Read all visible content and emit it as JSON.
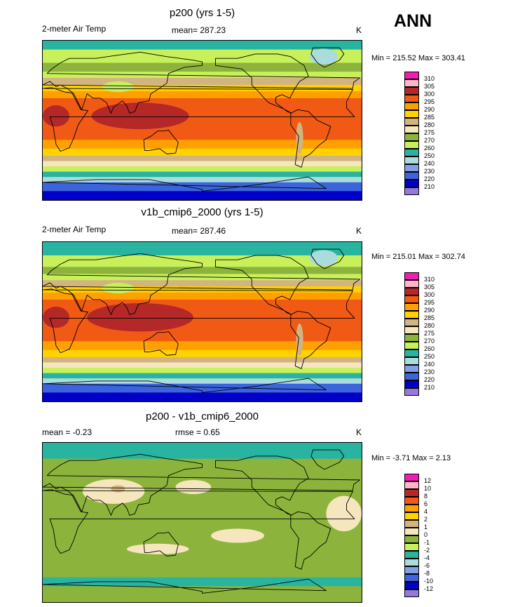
{
  "season": "ANN",
  "panels": [
    {
      "title": "p200 (yrs 1-5)",
      "left": "2-meter Air Temp",
      "center": "mean= 287.23",
      "units": "K",
      "minmax": "Min = 215.52 Max = 303.41",
      "cbar": {
        "colors": [
          "#f01eb4",
          "#ffb4c8",
          "#b42828",
          "#f05a14",
          "#ffa000",
          "#ffd200",
          "#d2b482",
          "#f5e6be",
          "#8cb43c",
          "#c8f05a",
          "#28b4a0",
          "#aadcdc",
          "#82a0e6",
          "#3c64dc",
          "#0000c8",
          "#9678dc"
        ],
        "labels": [
          "310",
          "305",
          "300",
          "295",
          "290",
          "285",
          "280",
          "275",
          "270",
          "260",
          "250",
          "240",
          "230",
          "220",
          "210"
        ]
      },
      "bands": [
        {
          "lat": 90,
          "color": "#28b4a0"
        },
        {
          "lat": 80,
          "color": "#c8f05a"
        },
        {
          "lat": 65,
          "color": "#8cb43c"
        },
        {
          "lat": 55,
          "color": "#c8f05a"
        },
        {
          "lat": 48,
          "color": "#d2b482"
        },
        {
          "lat": 40,
          "color": "#ffd200"
        },
        {
          "lat": 33,
          "color": "#ffa000"
        },
        {
          "lat": 25,
          "color": "#f05a14"
        },
        {
          "lat": -22,
          "color": "#ffa000"
        },
        {
          "lat": -32,
          "color": "#ffd200"
        },
        {
          "lat": -40,
          "color": "#d2b482"
        },
        {
          "lat": -46,
          "color": "#f5e6be"
        },
        {
          "lat": -52,
          "color": "#c8f05a"
        },
        {
          "lat": -58,
          "color": "#28b4a0"
        },
        {
          "lat": -64,
          "color": "#aadcdc"
        },
        {
          "lat": -70,
          "color": "#3c64dc"
        },
        {
          "lat": -80,
          "color": "#0000c8"
        }
      ],
      "blobs": [
        {
          "lon": 110,
          "lat": 5,
          "rx": 55,
          "ry": 15,
          "color": "#b42828"
        },
        {
          "lon": 15,
          "lat": 5,
          "rx": 15,
          "ry": 12,
          "color": "#b42828"
        },
        {
          "lon": 85,
          "lat": 38,
          "rx": 18,
          "ry": 6,
          "color": "#c8f05a"
        },
        {
          "lon": -43,
          "lat": 72,
          "rx": 16,
          "ry": 9,
          "color": "#aadcdc"
        },
        {
          "lon": -70,
          "lat": -20,
          "rx": 4,
          "ry": 18,
          "color": "#d2b482"
        }
      ]
    },
    {
      "title": "v1b_cmip6_2000 (yrs 1-5)",
      "left": "2-meter Air Temp",
      "center": "mean= 287.46",
      "units": "K",
      "minmax": "Min = 215.01 Max = 302.74",
      "cbar": {
        "colors": [
          "#f01eb4",
          "#ffb4c8",
          "#b42828",
          "#f05a14",
          "#ffa000",
          "#ffd200",
          "#d2b482",
          "#f5e6be",
          "#8cb43c",
          "#c8f05a",
          "#28b4a0",
          "#aadcdc",
          "#82a0e6",
          "#3c64dc",
          "#0000c8",
          "#9678dc"
        ],
        "labels": [
          "310",
          "305",
          "300",
          "295",
          "290",
          "285",
          "280",
          "275",
          "270",
          "260",
          "250",
          "240",
          "230",
          "220",
          "210"
        ]
      },
      "bands": [
        {
          "lat": 90,
          "color": "#28b4a0"
        },
        {
          "lat": 75,
          "color": "#c8f05a"
        },
        {
          "lat": 62,
          "color": "#8cb43c"
        },
        {
          "lat": 54,
          "color": "#c8f05a"
        },
        {
          "lat": 47,
          "color": "#d2b482"
        },
        {
          "lat": 40,
          "color": "#ffd200"
        },
        {
          "lat": 33,
          "color": "#ffa000"
        },
        {
          "lat": 25,
          "color": "#f05a14"
        },
        {
          "lat": -22,
          "color": "#ffa000"
        },
        {
          "lat": -32,
          "color": "#ffd200"
        },
        {
          "lat": -40,
          "color": "#d2b482"
        },
        {
          "lat": -46,
          "color": "#f5e6be"
        },
        {
          "lat": -52,
          "color": "#c8f05a"
        },
        {
          "lat": -58,
          "color": "#28b4a0"
        },
        {
          "lat": -64,
          "color": "#aadcdc"
        },
        {
          "lat": -70,
          "color": "#3c64dc"
        },
        {
          "lat": -80,
          "color": "#0000c8"
        }
      ],
      "blobs": [
        {
          "lon": 110,
          "lat": 5,
          "rx": 60,
          "ry": 16,
          "color": "#b42828"
        },
        {
          "lon": 15,
          "lat": 5,
          "rx": 15,
          "ry": 12,
          "color": "#b42828"
        },
        {
          "lon": 85,
          "lat": 38,
          "rx": 18,
          "ry": 6,
          "color": "#c8f05a"
        },
        {
          "lon": -43,
          "lat": 72,
          "rx": 16,
          "ry": 9,
          "color": "#aadcdc"
        },
        {
          "lon": -70,
          "lat": -20,
          "rx": 4,
          "ry": 18,
          "color": "#d2b482"
        }
      ]
    },
    {
      "title": "p200 - v1b_cmip6_2000",
      "left": "mean =  -0.23",
      "center": "rmse =   0.65",
      "units": "K",
      "minmax": "Min =  -3.71 Max =   2.13",
      "cbar": {
        "colors": [
          "#f01eb4",
          "#ffb4c8",
          "#b42828",
          "#f05a14",
          "#ffa000",
          "#ffd200",
          "#d2b482",
          "#f5e6be",
          "#8cb43c",
          "#c8f05a",
          "#28b4a0",
          "#aadcdc",
          "#82a0e6",
          "#3c64dc",
          "#0000c8",
          "#9678dc"
        ],
        "labels": [
          "12",
          "10",
          "8",
          "6",
          "4",
          "2",
          "1",
          "0",
          "-1",
          "-2",
          "-4",
          "-6",
          "-8",
          "-10",
          "-12"
        ]
      },
      "bands": [
        {
          "lat": 90,
          "color": "#28b4a0"
        },
        {
          "lat": 72,
          "color": "#8cb43c"
        },
        {
          "lat": -62,
          "color": "#28b4a0"
        },
        {
          "lat": -72,
          "color": "#8cb43c"
        }
      ],
      "blobs": [
        {
          "lon": 80,
          "lat": 35,
          "rx": 35,
          "ry": 14,
          "color": "#f5e6be"
        },
        {
          "lon": 85,
          "lat": 38,
          "rx": 8,
          "ry": 4,
          "color": "#d2b482"
        },
        {
          "lon": -140,
          "lat": -15,
          "rx": 30,
          "ry": 8,
          "color": "#f5e6be"
        },
        {
          "lon": -20,
          "lat": 10,
          "rx": 20,
          "ry": 20,
          "color": "#f5e6be"
        },
        {
          "lon": 130,
          "lat": -30,
          "rx": 35,
          "ry": 6,
          "color": "#f5e6be"
        },
        {
          "lon": 170,
          "lat": 40,
          "rx": 20,
          "ry": 8,
          "color": "#f5e6be"
        }
      ]
    }
  ]
}
